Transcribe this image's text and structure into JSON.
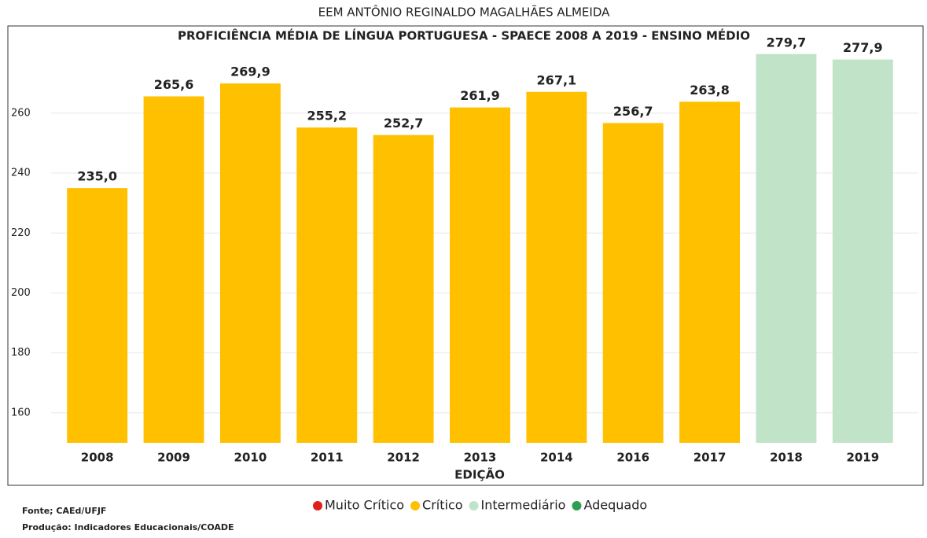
{
  "chart_data": {
    "type": "bar",
    "title": "EEM ANTÔNIO REGINALDO MAGALHÃES ALMEIDA",
    "subtitle": "PROFICIÊNCIA MÉDIA DE LÍNGUA PORTUGUESA - SPAECE 2008 A 2019 - ENSINO MÉDIO",
    "x_label": "EDIÇÃO",
    "categories": [
      "2008",
      "2009",
      "2010",
      "2011",
      "2012",
      "2013",
      "2014",
      "2016",
      "2017",
      "2018",
      "2019"
    ],
    "values": [
      235.0,
      265.6,
      269.9,
      255.2,
      252.7,
      261.9,
      267.1,
      256.7,
      263.8,
      279.7,
      277.9
    ],
    "value_labels": [
      "235,0",
      "265,6",
      "269,9",
      "255,2",
      "252,7",
      "261,9",
      "267,1",
      "256,7",
      "263,8",
      "279,7",
      "277,9"
    ],
    "colors": [
      "#ffc000",
      "#ffc000",
      "#ffc000",
      "#ffc000",
      "#ffc000",
      "#ffc000",
      "#ffc000",
      "#ffc000",
      "#ffc000",
      "#c1e3c8",
      "#c1e3c8"
    ],
    "legend": [
      {
        "name": "Muito Crítico",
        "color": "#e0201b"
      },
      {
        "name": "Crítico",
        "color": "#ffc000"
      },
      {
        "name": "Intermediário",
        "color": "#c1e3c8"
      },
      {
        "name": "Adequado",
        "color": "#2e9e55"
      }
    ],
    "ylim": [
      150,
      282
    ],
    "yticks": [
      160,
      180,
      200,
      220,
      240,
      260
    ],
    "grid": true
  },
  "footer": [
    "Fonte; CAEd/UFJF",
    "Produção: Indicadores Educacionais/COADE"
  ]
}
